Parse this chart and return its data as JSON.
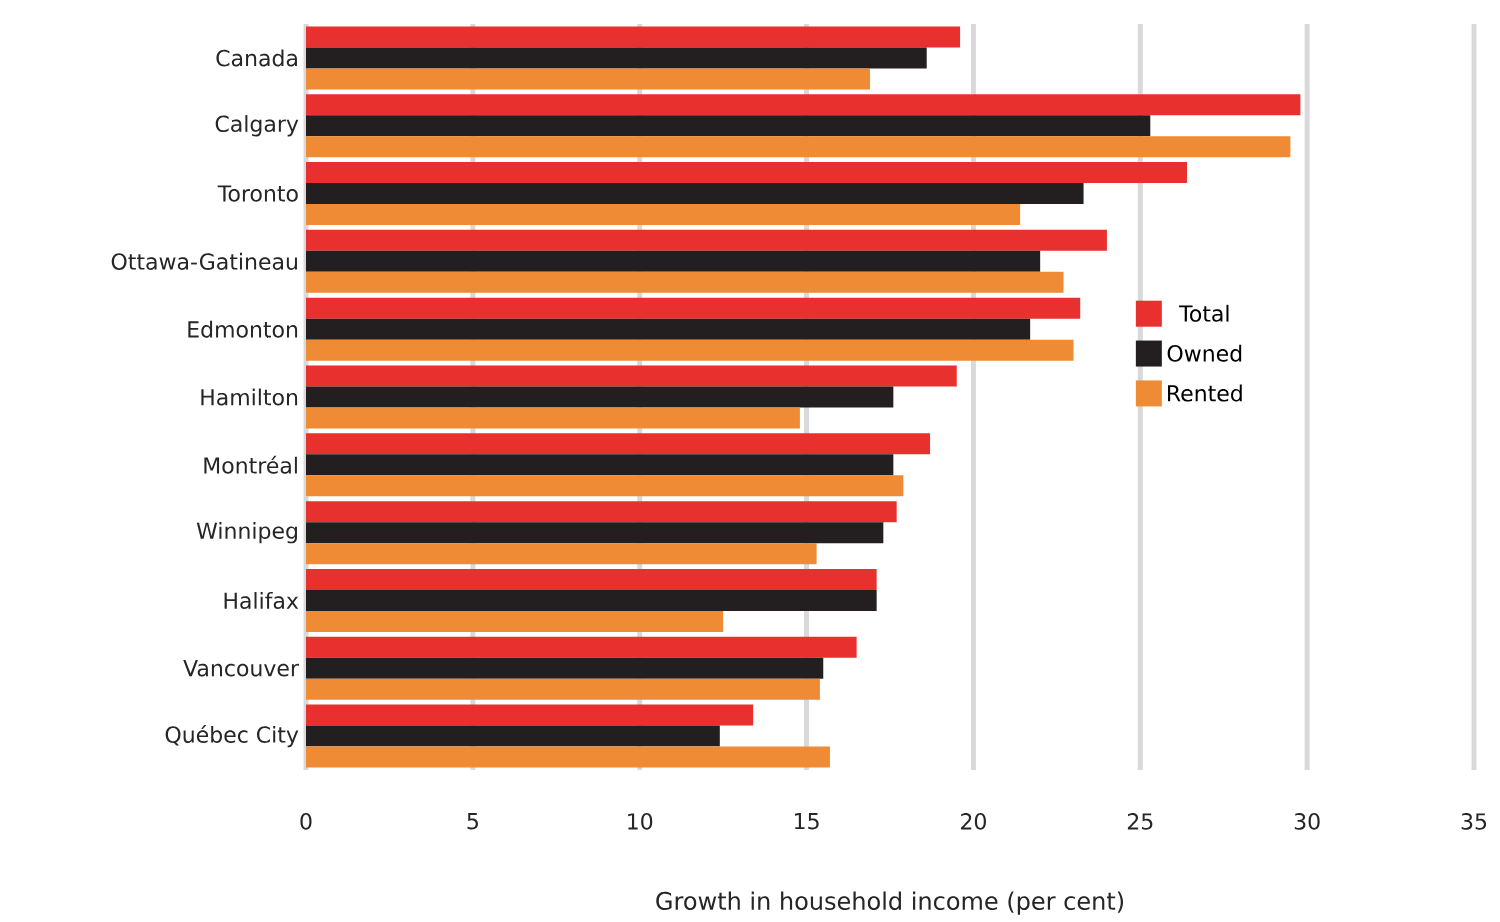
{
  "chart_data": {
    "type": "bar",
    "orientation": "horizontal",
    "xlabel": "Growth in household income (per cent)",
    "categories": [
      "Canada",
      "Calgary",
      "Toronto",
      "Ottawa-Gatineau",
      "Edmonton",
      "Hamilton",
      "Montréal",
      "Winnipeg",
      "Halifax",
      "Vancouver",
      "Québec City"
    ],
    "series": [
      {
        "name": "Total",
        "color": "#e8302e",
        "values": [
          19.6,
          29.8,
          26.4,
          24.0,
          23.2,
          19.5,
          18.7,
          17.7,
          17.1,
          16.5,
          13.4
        ]
      },
      {
        "name": "Owned",
        "color": "#231f20",
        "values": [
          18.6,
          25.3,
          23.3,
          22.0,
          21.7,
          17.6,
          17.6,
          17.3,
          17.1,
          15.5,
          12.4
        ]
      },
      {
        "name": "Rented",
        "color": "#ef8a35",
        "values": [
          16.9,
          29.5,
          21.4,
          22.7,
          23.0,
          14.8,
          17.9,
          15.3,
          12.5,
          15.4,
          15.7
        ]
      }
    ],
    "xlim": [
      0,
      35
    ],
    "xticks": [
      0,
      5,
      10,
      15,
      20,
      25,
      30,
      35
    ],
    "grid": "x",
    "legend": "right"
  }
}
